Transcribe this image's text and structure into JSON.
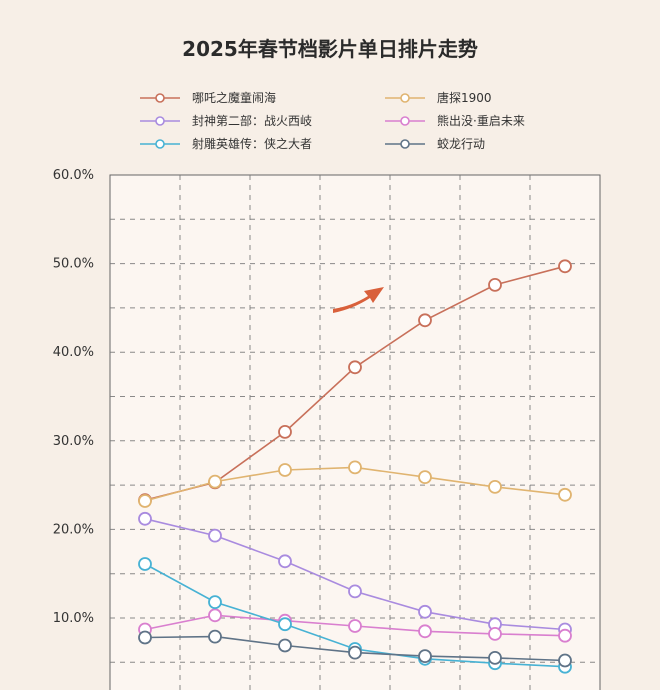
{
  "chart_data": {
    "type": "line",
    "title": "2025年春节档影片单日排片走势",
    "xlabel": "",
    "ylabel": "",
    "ylim": [
      0,
      60
    ],
    "ytick_labels": [
      "10.0%",
      "20.0%",
      "30.0%",
      "40.0%",
      "50.0%",
      "60.0%"
    ],
    "y_ticks": [
      10,
      20,
      30,
      40,
      50,
      60
    ],
    "x": [
      1,
      2,
      3,
      4,
      5,
      6,
      7
    ],
    "grid": true,
    "legend_position": "top",
    "series": [
      {
        "name": "哪吒之魔童闹海",
        "color": "#c8705a",
        "values": [
          23.3,
          25.3,
          31.0,
          38.3,
          43.6,
          47.6,
          49.7
        ]
      },
      {
        "name": "唐探1900",
        "color": "#e0b470",
        "values": [
          23.2,
          25.4,
          26.7,
          27.0,
          25.9,
          24.8,
          23.9
        ]
      },
      {
        "name": "封神第二部：战火西岐",
        "color": "#a98bdf",
        "values": [
          21.2,
          19.3,
          16.4,
          13.0,
          10.7,
          9.3,
          8.7
        ]
      },
      {
        "name": "熊出没·重启未来",
        "color": "#d97fcf",
        "values": [
          8.7,
          10.3,
          9.7,
          9.1,
          8.5,
          8.2,
          8.0
        ]
      },
      {
        "name": "射雕英雄传：侠之大者",
        "color": "#47b2d4",
        "values": [
          16.1,
          11.8,
          9.3,
          6.5,
          5.4,
          4.9,
          4.5
        ]
      },
      {
        "name": "蛟龙行动",
        "color": "#5f7387",
        "values": [
          7.8,
          7.9,
          6.9,
          6.1,
          5.7,
          5.5,
          5.2
        ]
      }
    ],
    "annotations": [
      {
        "type": "arrow",
        "color": "#d9603b",
        "direction": "up-right"
      }
    ]
  }
}
